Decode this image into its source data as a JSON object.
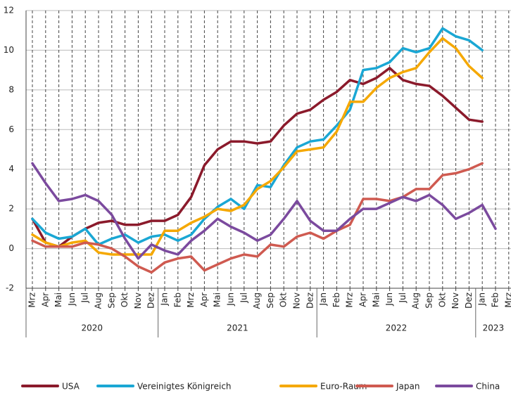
{
  "chart_data": {
    "type": "line",
    "category_groups": [
      {
        "label": "2020",
        "categories": [
          "Mrz",
          "Apr",
          "Mai",
          "Jun",
          "Jul",
          "Aug",
          "Sep",
          "Okt",
          "Nov",
          "Dez"
        ]
      },
      {
        "label": "2021",
        "categories": [
          "Jan",
          "Feb",
          "Mrz",
          "Apr",
          "Mai",
          "Jun",
          "Jul",
          "Aug",
          "Sep",
          "Okt",
          "Nov",
          "Dez"
        ]
      },
      {
        "label": "2022",
        "categories": [
          "Jan",
          "Feb",
          "Mrz",
          "Apr",
          "Mai",
          "Jun",
          "Jul",
          "Aug",
          "Sep",
          "Okt",
          "Nov",
          "Dez"
        ]
      },
      {
        "label": "2023",
        "categories": [
          "Jan",
          "Feb",
          "Mrz"
        ]
      }
    ],
    "series": [
      {
        "name": "USA",
        "color": "#8b1a2b",
        "values": [
          1.5,
          0.3,
          0.1,
          0.6,
          1.0,
          1.3,
          1.4,
          1.2,
          1.2,
          1.4,
          1.4,
          1.7,
          2.6,
          4.2,
          5.0,
          5.4,
          5.4,
          5.3,
          5.4,
          6.2,
          6.8,
          7.0,
          7.5,
          7.9,
          8.5,
          8.3,
          8.6,
          9.1,
          8.5,
          8.3,
          8.2,
          7.7,
          7.1,
          6.5,
          6.4,
          null,
          null
        ]
      },
      {
        "name": "Vereinigtes Königreich",
        "color": "#1aa7d4",
        "values": [
          1.5,
          0.8,
          0.5,
          0.6,
          1.0,
          0.2,
          0.5,
          0.7,
          0.3,
          0.6,
          0.7,
          0.4,
          0.7,
          1.5,
          2.1,
          2.5,
          2.0,
          3.2,
          3.1,
          4.2,
          5.1,
          5.4,
          5.5,
          6.2,
          7.0,
          9.0,
          9.1,
          9.4,
          10.1,
          9.9,
          10.1,
          11.1,
          10.7,
          10.5,
          10.0,
          null,
          null
        ]
      },
      {
        "name": "Euro-Raum",
        "color": "#f5a800",
        "values": [
          0.7,
          0.3,
          0.1,
          0.3,
          0.4,
          -0.2,
          -0.3,
          -0.3,
          -0.3,
          -0.3,
          0.9,
          0.9,
          1.3,
          1.6,
          2.0,
          1.9,
          2.2,
          3.0,
          3.4,
          4.1,
          4.9,
          5.0,
          5.1,
          5.9,
          7.4,
          7.4,
          8.1,
          8.6,
          8.9,
          9.1,
          9.9,
          10.6,
          10.1,
          9.2,
          8.6,
          null,
          null
        ]
      },
      {
        "name": "Japan",
        "color": "#cf5a50",
        "values": [
          0.4,
          0.1,
          0.1,
          0.1,
          0.3,
          0.2,
          0,
          -0.4,
          -0.9,
          -1.2,
          -0.7,
          -0.5,
          -0.4,
          -1.1,
          -0.8,
          -0.5,
          -0.3,
          -0.4,
          0.2,
          0.1,
          0.6,
          0.8,
          0.5,
          0.9,
          1.2,
          2.5,
          2.5,
          2.4,
          2.6,
          3.0,
          3.0,
          3.7,
          3.8,
          4.0,
          4.3,
          null,
          null
        ]
      },
      {
        "name": "China",
        "color": "#7b4a9e",
        "values": [
          4.3,
          3.3,
          2.4,
          2.5,
          2.7,
          2.4,
          1.7,
          0.5,
          -0.5,
          0.2,
          -0.1,
          -0.3,
          0.4,
          0.9,
          1.5,
          1.1,
          0.8,
          0.4,
          0.7,
          1.5,
          2.4,
          1.4,
          0.9,
          0.9,
          1.5,
          2.0,
          2.0,
          2.3,
          2.6,
          2.4,
          2.7,
          2.2,
          1.5,
          1.8,
          2.2,
          1.0,
          null
        ]
      }
    ],
    "ylim": [
      -2,
      12
    ],
    "yticks": [
      -2,
      0,
      2,
      4,
      6,
      8,
      10,
      12
    ],
    "grid": true
  }
}
